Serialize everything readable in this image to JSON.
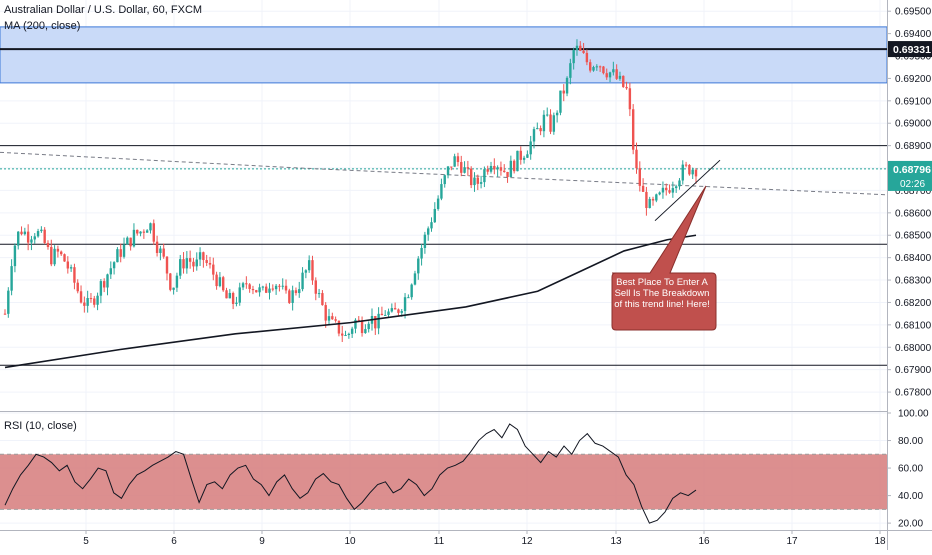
{
  "header": {
    "symbol_title": "Australian Dollar / U.S. Dollar, 60, FXCM",
    "ma_label": "MA (200, close)",
    "rsi_label": "RSI (10, close)"
  },
  "price_badges": {
    "resistance": "0.69331",
    "current": "0.68796",
    "countdown": "02:26"
  },
  "annotation": {
    "text": "Best Place To Enter A Sell Is The Breakdown of this trend line! Here!"
  },
  "colors": {
    "up": "#26a69a",
    "down": "#ef5350",
    "zone_fill": "#c9daf8",
    "zone_border": "#3c78d8",
    "rsi_band": "#d67b7b",
    "callout_fill": "#c0504d",
    "ma_line": "#131722",
    "current_line": "#26a69a"
  },
  "chart_data": [
    {
      "type": "candlestick",
      "title": "Australian Dollar / U.S. Dollar, 60, FXCM",
      "y_ticks": [
        "0.69500",
        "0.69400",
        "0.69300",
        "0.69200",
        "0.69100",
        "0.69000",
        "0.68900",
        "0.68800",
        "0.68700",
        "0.68600",
        "0.68500",
        "0.68400",
        "0.68300",
        "0.68200",
        "0.68100",
        "0.68000",
        "0.67900",
        "0.67800"
      ],
      "ylim": [
        0.6772,
        0.6955
      ],
      "x_ticks": [
        "5",
        "6",
        "9",
        "10",
        "11",
        "12",
        "13",
        "16",
        "17",
        "18"
      ],
      "close_path": [
        0.6815,
        0.6843,
        0.6853,
        0.685,
        0.6852,
        0.6848,
        0.684,
        0.6842,
        0.6838,
        0.683,
        0.6822,
        0.6818,
        0.6824,
        0.683,
        0.6836,
        0.6842,
        0.6846,
        0.685,
        0.6852,
        0.6856,
        0.6846,
        0.6838,
        0.6826,
        0.6836,
        0.684,
        0.6836,
        0.684,
        0.6835,
        0.683,
        0.6822,
        0.682,
        0.6824,
        0.683,
        0.6826,
        0.6824,
        0.683,
        0.6828,
        0.6822,
        0.6824,
        0.683,
        0.6836,
        0.6826,
        0.6816,
        0.681,
        0.6808,
        0.6804,
        0.6812,
        0.681,
        0.6814,
        0.681,
        0.6816,
        0.6814,
        0.6818,
        0.6824,
        0.6836,
        0.6846,
        0.6856,
        0.6866,
        0.6876,
        0.6884,
        0.6882,
        0.6876,
        0.6872,
        0.6878,
        0.6884,
        0.6882,
        0.6878,
        0.6882,
        0.6886,
        0.689,
        0.6896,
        0.6902,
        0.6898,
        0.691,
        0.6918,
        0.6934,
        0.693,
        0.6926,
        0.6928,
        0.6924,
        0.6922,
        0.6918,
        0.6914,
        0.688,
        0.6868,
        0.6862,
        0.6866,
        0.687,
        0.6874,
        0.6878,
        0.688,
        0.688
      ],
      "candles_count": 210,
      "resistance_zone": [
        0.6918,
        0.6943
      ],
      "horizontal_levels": [
        0.69331,
        0.689,
        0.6846,
        0.6792
      ],
      "current_price": 0.68796,
      "ma": {
        "name": "MA (200, close)",
        "points": [
          [
            0,
            0.6791
          ],
          [
            40,
            0.6799
          ],
          [
            80,
            0.6806
          ],
          [
            120,
            0.6811
          ],
          [
            160,
            0.6818
          ],
          [
            185,
            0.6825
          ],
          [
            200,
            0.6834
          ],
          [
            215,
            0.6843
          ],
          [
            230,
            0.6848
          ],
          [
            240,
            0.685
          ]
        ]
      },
      "dashed_trendline": [
        [
          0,
          0.6887
        ],
        [
          300,
          0.688
        ],
        [
          890,
          0.6868
        ]
      ],
      "rising_trendline": [
        [
          655,
          0.68565
        ],
        [
          720,
          0.68835
        ]
      ]
    },
    {
      "type": "line",
      "title": "RSI (10, close)",
      "y_ticks": [
        "100.00",
        "80.00",
        "60.00",
        "40.00",
        "20.00"
      ],
      "ylim": [
        15,
        100
      ],
      "overbought_band": [
        30,
        70
      ],
      "values": [
        33,
        45,
        55,
        62,
        70,
        68,
        64,
        58,
        62,
        50,
        45,
        52,
        60,
        58,
        42,
        38,
        48,
        55,
        58,
        62,
        65,
        68,
        72,
        70,
        52,
        35,
        48,
        50,
        45,
        55,
        60,
        62,
        52,
        48,
        40,
        50,
        55,
        45,
        38,
        42,
        52,
        56,
        50,
        48,
        38,
        30,
        35,
        42,
        48,
        50,
        42,
        45,
        52,
        48,
        40,
        45,
        55,
        60,
        62,
        65,
        72,
        80,
        85,
        88,
        82,
        92,
        88,
        76,
        70,
        64,
        72,
        68,
        76,
        70,
        80,
        85,
        78,
        76,
        72,
        68,
        55,
        48,
        32,
        20,
        22,
        28,
        38,
        42,
        40,
        44
      ]
    }
  ]
}
